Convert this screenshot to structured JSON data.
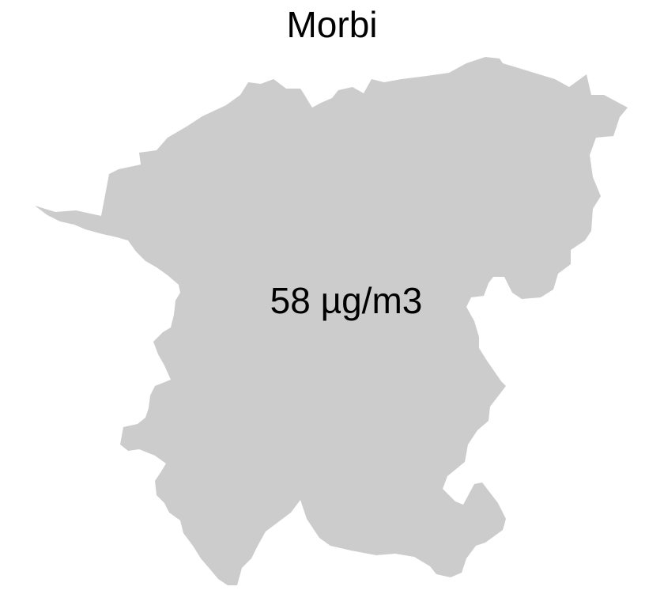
{
  "map": {
    "title": "Morbi",
    "region_value_label": "58 µg/m3",
    "fill_color": "#cccccc",
    "background_color": "#ffffff"
  }
}
